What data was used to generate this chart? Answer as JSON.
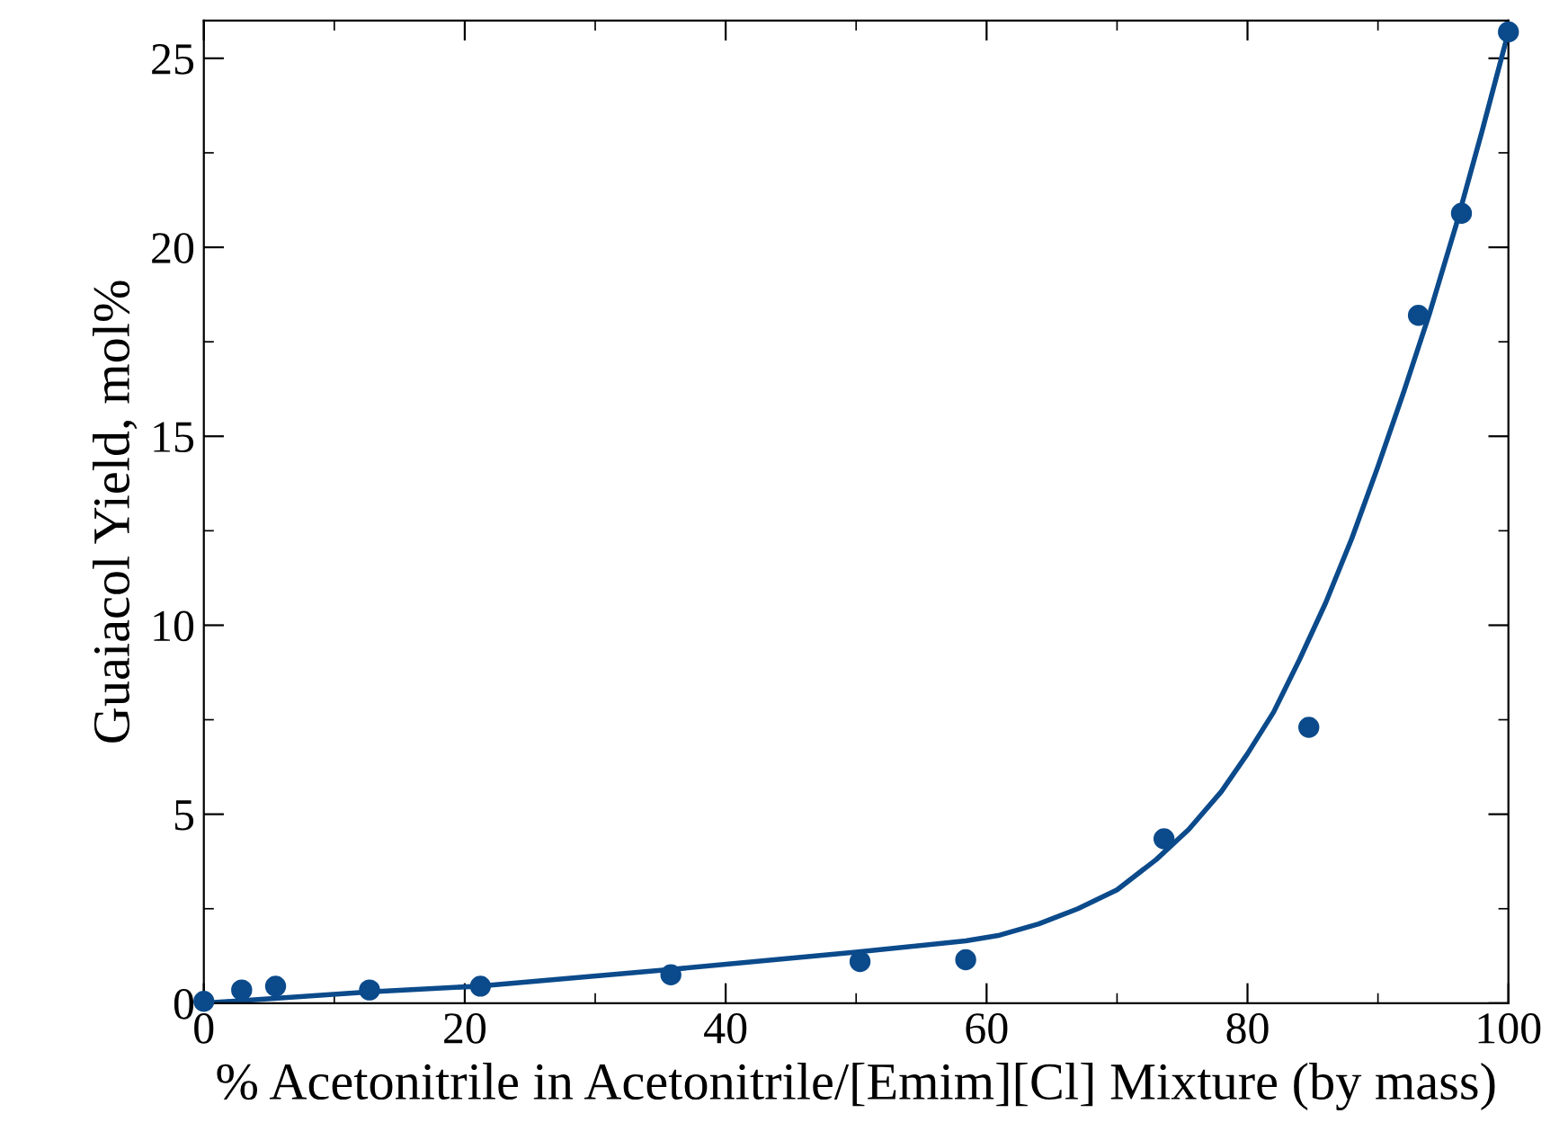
{
  "chart_data": {
    "type": "scatter",
    "xlabel": "% Acetonitrile in Acetonitrile/[Emim][Cl] Mixture (by mass)",
    "ylabel": "Guaiacol Yield, mol%",
    "xlim": [
      0,
      100
    ],
    "ylim": [
      0,
      26
    ],
    "xticks": [
      0,
      20,
      40,
      60,
      80,
      100
    ],
    "yticks": [
      0,
      5,
      10,
      15,
      20,
      25
    ],
    "grid": false,
    "legend": false,
    "series": [
      {
        "color": "#0b4a8b",
        "marker": "circle",
        "x": [
          0,
          2.9,
          5.5,
          12.7,
          21.2,
          35.8,
          50.3,
          58.4,
          73.6,
          84.7,
          93.1,
          96.4,
          100
        ],
        "values": [
          0.05,
          0.35,
          0.45,
          0.35,
          0.45,
          0.75,
          1.1,
          1.15,
          4.35,
          7.3,
          18.2,
          20.9,
          25.7
        ]
      },
      {
        "type": "line",
        "color": "#0b4a8b",
        "marker": "none",
        "line_style": "solid",
        "x": [
          0,
          12.7,
          21,
          36,
          50,
          58.4,
          61,
          64,
          67,
          70,
          73,
          75.5,
          78,
          80,
          82,
          84,
          86,
          88,
          90,
          92,
          94,
          96,
          98,
          100
        ],
        "values": [
          0,
          0.3,
          0.45,
          0.9,
          1.35,
          1.65,
          1.8,
          2.1,
          2.5,
          3.0,
          3.8,
          4.6,
          5.6,
          6.6,
          7.7,
          9.1,
          10.6,
          12.3,
          14.2,
          16.2,
          18.3,
          20.6,
          23.1,
          25.7
        ]
      }
    ]
  }
}
